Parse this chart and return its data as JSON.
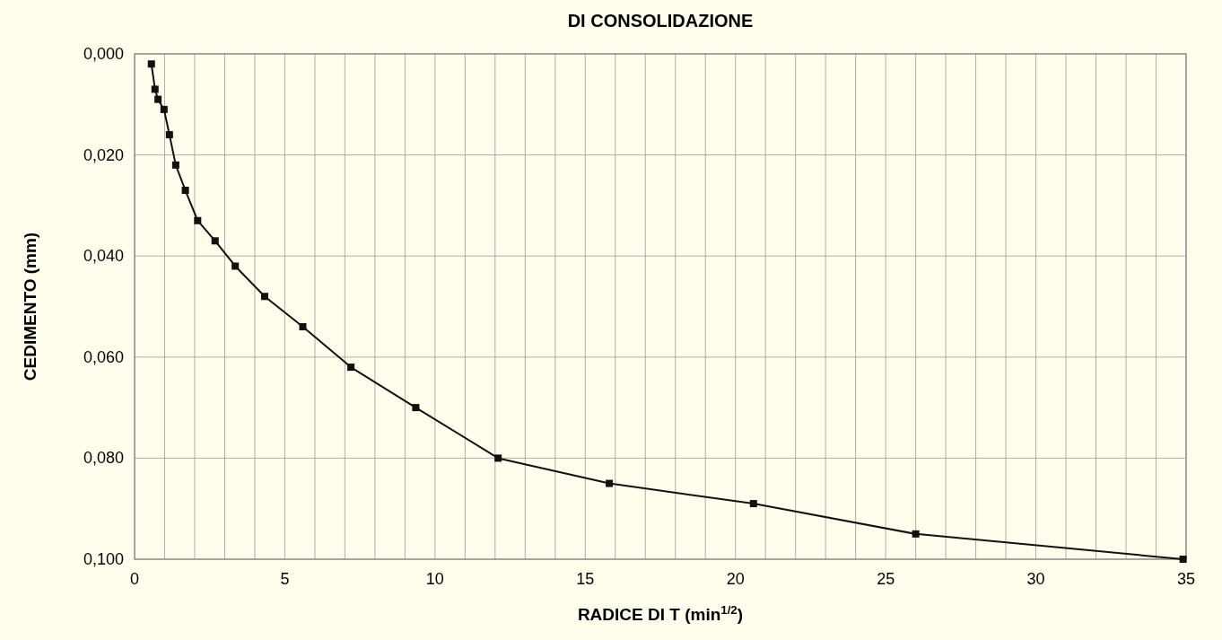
{
  "chart_data": {
    "type": "line",
    "title": "DI CONSOLIDAZIONE",
    "xlabel": "RADICE DI T (min$^{1/2}$)",
    "ylabel": "CEDIMENTO (mm)",
    "x": [
      0.56,
      0.68,
      0.78,
      0.98,
      1.16,
      1.37,
      1.69,
      2.1,
      2.68,
      3.35,
      4.33,
      5.6,
      7.2,
      9.36,
      12.1,
      15.8,
      20.6,
      26.0,
      34.9
    ],
    "series": [
      {
        "color": "#111111",
        "values": [
          0.002,
          0.007,
          0.009,
          0.011,
          0.016,
          0.022,
          0.027,
          0.033,
          0.037,
          0.042,
          0.048,
          0.054,
          0.062,
          0.07,
          0.08,
          0.085,
          0.089,
          0.095,
          0.1
        ]
      }
    ],
    "xlim": [
      0,
      35
    ],
    "xticks": [
      0,
      {
        "value": 1,
        "label": null
      },
      {
        "value": 2,
        "label": null
      },
      {
        "value": 3,
        "label": null
      },
      {
        "value": 4,
        "label": null
      },
      5,
      {
        "value": 6,
        "label": null
      },
      {
        "value": 7,
        "label": null
      },
      {
        "value": 8,
        "label": null
      },
      {
        "value": 9,
        "label": null
      },
      10,
      {
        "value": 11,
        "label": null
      },
      {
        "value": 12,
        "label": null
      },
      {
        "value": 13,
        "label": null
      },
      {
        "value": 14,
        "label": null
      },
      15,
      {
        "value": 16,
        "label": null
      },
      {
        "value": 17,
        "label": null
      },
      {
        "value": 18,
        "label": null
      },
      {
        "value": 19,
        "label": null
      },
      20,
      {
        "value": 21,
        "label": null
      },
      {
        "value": 22,
        "label": null
      },
      {
        "value": 23,
        "label": null
      },
      {
        "value": 24,
        "label": null
      },
      25,
      {
        "value": 26,
        "label": null
      },
      {
        "value": 27,
        "label": null
      },
      {
        "value": 28,
        "label": null
      },
      {
        "value": 29,
        "label": null
      },
      30,
      {
        "value": 31,
        "label": null
      },
      {
        "value": 32,
        "label": null
      },
      {
        "value": 33,
        "label": null
      },
      {
        "value": 34,
        "label": null
      },
      35
    ],
    "ylim": [
      0.1,
      0
    ],
    "yticks": [
      {
        "value": 0,
        "label": "0,000"
      },
      {
        "value": 0.02,
        "label": "0,020"
      },
      {
        "value": 0.04,
        "label": "0,040"
      },
      {
        "value": 0.06,
        "label": "0,060"
      },
      {
        "value": 0.08,
        "label": "0,080"
      },
      {
        "value": 0.1,
        "label": "0,100"
      }
    ],
    "grid": true,
    "marker": "square",
    "line_style": "solid"
  }
}
